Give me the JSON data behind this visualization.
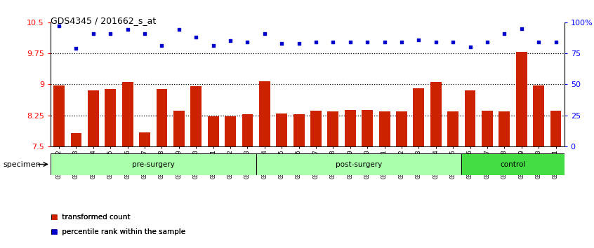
{
  "title": "GDS4345 / 201662_s_at",
  "samples": [
    "GSM842012",
    "GSM842013",
    "GSM842014",
    "GSM842015",
    "GSM842016",
    "GSM842017",
    "GSM842018",
    "GSM842019",
    "GSM842020",
    "GSM842021",
    "GSM842022",
    "GSM842023",
    "GSM842024",
    "GSM842025",
    "GSM842026",
    "GSM842027",
    "GSM842028",
    "GSM842029",
    "GSM842030",
    "GSM842031",
    "GSM842032",
    "GSM842033",
    "GSM842034",
    "GSM842035",
    "GSM842036",
    "GSM842037",
    "GSM842038",
    "GSM842039",
    "GSM842040",
    "GSM842041"
  ],
  "bar_values": [
    8.98,
    7.82,
    8.85,
    8.88,
    9.05,
    7.84,
    8.88,
    8.37,
    8.95,
    8.22,
    8.22,
    8.27,
    9.07,
    8.3,
    8.27,
    8.37,
    8.35,
    8.38,
    8.38,
    8.35,
    8.35,
    8.9,
    9.06,
    8.34,
    8.86,
    8.36,
    8.35,
    9.78,
    8.98,
    8.37
  ],
  "percentile_values": [
    97,
    79,
    91,
    91,
    94,
    91,
    81,
    94,
    88,
    81,
    85,
    84,
    91,
    83,
    83,
    84,
    84,
    84,
    84,
    84,
    84,
    86,
    84,
    84,
    80,
    84,
    91,
    95,
    84,
    84
  ],
  "groups": [
    {
      "label": "pre-surgery",
      "start": 0,
      "end": 12
    },
    {
      "label": "post-surgery",
      "start": 12,
      "end": 24
    },
    {
      "label": "control",
      "start": 24,
      "end": 30
    }
  ],
  "group_colors": [
    "#aaffaa",
    "#aaffaa",
    "#44dd44"
  ],
  "ylim_left": [
    7.5,
    10.5
  ],
  "ylim_right": [
    0,
    100
  ],
  "yticks_left": [
    7.5,
    8.25,
    9.0,
    9.75,
    10.5
  ],
  "yticks_right": [
    0,
    25,
    50,
    75,
    100
  ],
  "ytick_labels_left": [
    "7.5",
    "8.25",
    "9",
    "9.75",
    "10.5"
  ],
  "ytick_labels_right": [
    "0",
    "25",
    "50",
    "75",
    "100%"
  ],
  "hlines": [
    8.25,
    9.0,
    9.75
  ],
  "bar_color": "#CC2200",
  "dot_color": "#0000CC",
  "bar_bottom": 7.5,
  "percentile_min": 0,
  "percentile_max": 100,
  "legend_bar_label": "transformed count",
  "legend_dot_label": "percentile rank within the sample",
  "specimen_label": "specimen"
}
